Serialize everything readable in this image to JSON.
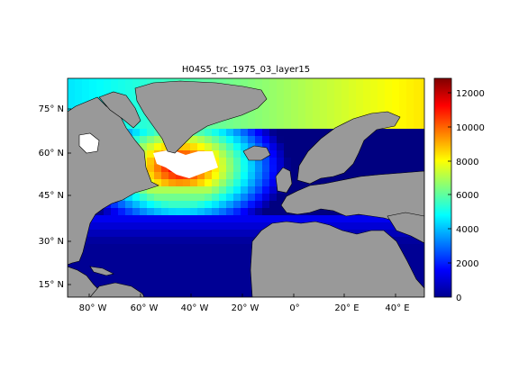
{
  "title": "H04S5_trc_1975_03_layer15",
  "map": {
    "lon_range": [
      -90,
      50
    ],
    "lat_range": [
      10,
      85
    ],
    "lon_ticks": [
      "80° W",
      "60° W",
      "40° W",
      "20° W",
      "0°",
      "20° E",
      "40° E"
    ],
    "lat_ticks": [
      "75° N",
      "60° N",
      "45° N",
      "30° N",
      "15° N"
    ],
    "land_color": "#999999",
    "nodata_color": "#ffffff"
  },
  "colorbar": {
    "range": [
      0,
      12800
    ],
    "ticks": [
      "12000",
      "10000",
      "8000",
      "6000",
      "4000",
      "2000",
      "0"
    ],
    "colormap": "jet"
  }
}
